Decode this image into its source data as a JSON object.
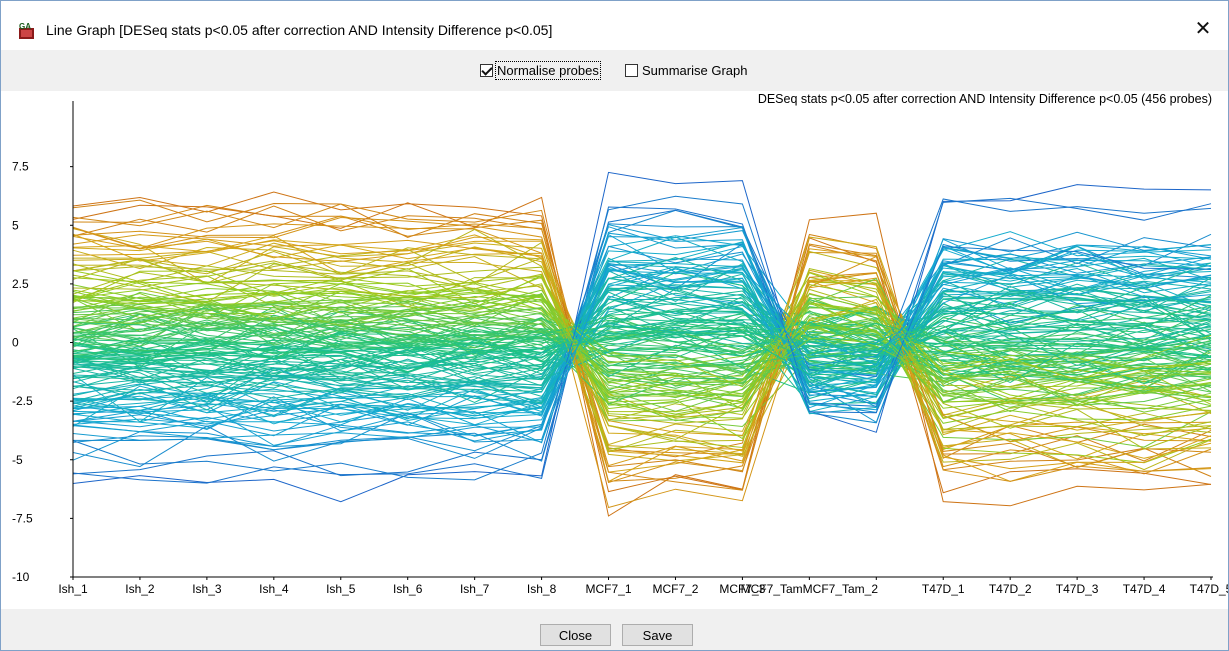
{
  "window": {
    "title": "Line Graph [DESeq stats p<0.05 after correction AND Intensity Difference p<0.05]",
    "app_icon": "seqmonk-icon",
    "close_glyph": "✕"
  },
  "toolbar": {
    "normalise_label": "Normalise probes",
    "normalise_checked": true,
    "summarise_label": "Summarise Graph",
    "summarise_checked": false
  },
  "buttons": {
    "close_label": "Close",
    "save_label": "Save"
  },
  "chart_data": {
    "type": "line",
    "title": "DESeq stats p<0.05 after correction AND Intensity Difference p<0.05 (456 probes)",
    "categories": [
      "Ish_1",
      "Ish_2",
      "Ish_3",
      "Ish_4",
      "Ish_5",
      "Ish_6",
      "Ish_7",
      "Ish_8",
      "MCF7_1",
      "MCF7_2",
      "MCF7_3",
      "MCF7_Tam_1",
      "MCF7_Tam_2",
      "T47D_1",
      "T47D_2",
      "T47D_3",
      "T47D_4",
      "T47D_5"
    ],
    "category_tick_labels": [
      "Ish_1",
      "Ish_2",
      "Ish_3",
      "Ish_4",
      "Ish_5",
      "Ish_6",
      "Ish_7",
      "Ish_8",
      "MCF7_1",
      "MCF7_2",
      "MCF7_3",
      "MCF7_TamMCF7_Tam_2",
      "",
      "T47D_1",
      "T47D_2",
      "T47D_3",
      "T47D_4",
      "T47D_5"
    ],
    "y_ticks": [
      {
        "value": 7.5,
        "label": "7.5"
      },
      {
        "value": 5,
        "label": "5"
      },
      {
        "value": 2.5,
        "label": "2.5"
      },
      {
        "value": 0,
        "label": "0"
      },
      {
        "value": -2.5,
        "label": "-2.5"
      },
      {
        "value": -5,
        "label": "-5"
      },
      {
        "value": -7.5,
        "label": "-7.5"
      },
      {
        "value": -10,
        "label": "-10"
      }
    ],
    "ylim": [
      -10,
      10.3
    ],
    "probe_count": 456,
    "color_scale": "blue (low) – cyan – green – yellow – orange (high)",
    "grid": false,
    "legend": "none"
  }
}
